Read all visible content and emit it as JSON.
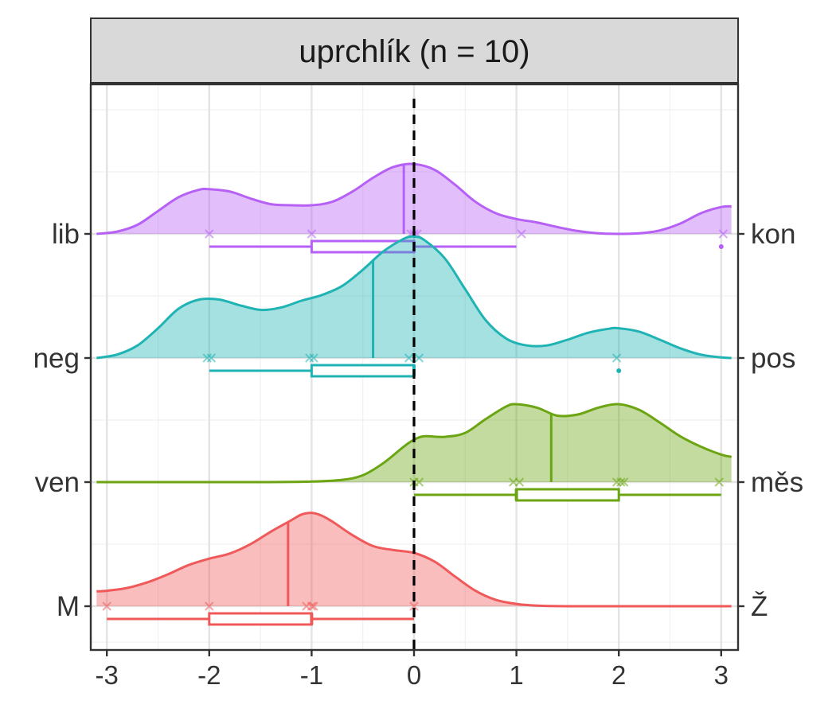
{
  "chart_data": {
    "type": "ridgeline",
    "title": "uprchlík (n = 10)",
    "xlim": [
      -3.1,
      3.1
    ],
    "x_ticks": [
      "-3",
      "-2",
      "-1",
      "0",
      "1",
      "2",
      "3"
    ],
    "x_tick_values": [
      -3,
      -2,
      -1,
      0,
      1,
      2,
      3
    ],
    "reference_line_x": 0,
    "grid": true,
    "legend": "none",
    "series": [
      {
        "left_label": "M",
        "right_label": "Ž",
        "color": "#F0595A",
        "points": [
          -3,
          -2,
          -1.05,
          -1,
          -0.98,
          0
        ],
        "mean": -1.23,
        "box": {
          "whisker_low": -3,
          "q1": -2,
          "median": -1,
          "q3": -1,
          "whisker_high": 0
        },
        "outliers": [],
        "density": [
          [
            -3.1,
            0.26
          ],
          [
            -3.0,
            0.27
          ],
          [
            -2.8,
            0.32
          ],
          [
            -2.6,
            0.42
          ],
          [
            -2.4,
            0.56
          ],
          [
            -2.2,
            0.72
          ],
          [
            -2.0,
            0.83
          ],
          [
            -1.8,
            0.92
          ],
          [
            -1.6,
            1.08
          ],
          [
            -1.4,
            1.3
          ],
          [
            -1.2,
            1.5
          ],
          [
            -1.1,
            1.6
          ],
          [
            -1.0,
            1.63
          ],
          [
            -0.9,
            1.58
          ],
          [
            -0.8,
            1.48
          ],
          [
            -0.6,
            1.24
          ],
          [
            -0.4,
            1.05
          ],
          [
            -0.2,
            0.98
          ],
          [
            0.0,
            0.93
          ],
          [
            0.2,
            0.78
          ],
          [
            0.4,
            0.52
          ],
          [
            0.6,
            0.27
          ],
          [
            0.8,
            0.11
          ],
          [
            1.0,
            0.04
          ],
          [
            1.2,
            0.01
          ],
          [
            1.5,
            0.0
          ],
          [
            2.0,
            0.0
          ],
          [
            3.1,
            0.0
          ]
        ]
      },
      {
        "left_label": "ven",
        "right_label": "měs",
        "color": "#6BA512",
        "points": [
          0,
          0.05,
          0.97,
          1.03,
          1.98,
          2.02,
          2.05,
          2.98
        ],
        "mean": 1.34,
        "box": {
          "whisker_low": 0,
          "q1": 1,
          "median": 1,
          "q3": 2,
          "whisker_high": 3
        },
        "outliers": [],
        "density": [
          [
            -3.1,
            0.0
          ],
          [
            -1.5,
            0.0
          ],
          [
            -1.0,
            0.01
          ],
          [
            -0.7,
            0.04
          ],
          [
            -0.5,
            0.12
          ],
          [
            -0.3,
            0.33
          ],
          [
            -0.1,
            0.62
          ],
          [
            0.0,
            0.74
          ],
          [
            0.1,
            0.8
          ],
          [
            0.3,
            0.79
          ],
          [
            0.5,
            0.86
          ],
          [
            0.7,
            1.1
          ],
          [
            0.9,
            1.32
          ],
          [
            1.0,
            1.36
          ],
          [
            1.2,
            1.3
          ],
          [
            1.4,
            1.16
          ],
          [
            1.6,
            1.18
          ],
          [
            1.8,
            1.3
          ],
          [
            2.0,
            1.36
          ],
          [
            2.2,
            1.26
          ],
          [
            2.4,
            1.04
          ],
          [
            2.6,
            0.8
          ],
          [
            2.8,
            0.62
          ],
          [
            3.0,
            0.48
          ],
          [
            3.1,
            0.44
          ]
        ]
      },
      {
        "left_label": "neg",
        "right_label": "pos",
        "color": "#1FB3B4",
        "points": [
          -2.02,
          -1.98,
          -1.02,
          -0.98,
          -0.05,
          0.05,
          1.98
        ],
        "mean": -0.4,
        "box": {
          "whisker_low": -2,
          "q1": -1,
          "median": 0,
          "q3": 0,
          "whisker_high": 0
        },
        "outliers": [
          2
        ],
        "density": [
          [
            -3.1,
            0.0
          ],
          [
            -2.9,
            0.06
          ],
          [
            -2.7,
            0.22
          ],
          [
            -2.5,
            0.52
          ],
          [
            -2.3,
            0.86
          ],
          [
            -2.1,
            1.02
          ],
          [
            -1.9,
            1.02
          ],
          [
            -1.7,
            0.92
          ],
          [
            -1.5,
            0.84
          ],
          [
            -1.3,
            0.88
          ],
          [
            -1.1,
            1.0
          ],
          [
            -0.9,
            1.1
          ],
          [
            -0.7,
            1.26
          ],
          [
            -0.5,
            1.54
          ],
          [
            -0.3,
            1.86
          ],
          [
            -0.1,
            2.08
          ],
          [
            0.0,
            2.12
          ],
          [
            0.1,
            2.06
          ],
          [
            0.3,
            1.74
          ],
          [
            0.5,
            1.2
          ],
          [
            0.7,
            0.66
          ],
          [
            0.9,
            0.34
          ],
          [
            1.1,
            0.22
          ],
          [
            1.3,
            0.22
          ],
          [
            1.5,
            0.32
          ],
          [
            1.7,
            0.44
          ],
          [
            1.9,
            0.51
          ],
          [
            2.0,
            0.52
          ],
          [
            2.2,
            0.46
          ],
          [
            2.4,
            0.32
          ],
          [
            2.6,
            0.17
          ],
          [
            2.8,
            0.06
          ],
          [
            3.0,
            0.01
          ],
          [
            3.1,
            0.0
          ]
        ]
      },
      {
        "left_label": "lib",
        "right_label": "kon",
        "color": "#B660F5",
        "points": [
          -2,
          -1,
          -0.03,
          0,
          0.03,
          1.05,
          3.02
        ],
        "mean": -0.1,
        "box": {
          "whisker_low": -2,
          "q1": -1,
          "median": 0,
          "q3": 0,
          "whisker_high": 1
        },
        "outliers": [
          3
        ],
        "density": [
          [
            -3.1,
            0.0
          ],
          [
            -2.9,
            0.04
          ],
          [
            -2.7,
            0.16
          ],
          [
            -2.5,
            0.4
          ],
          [
            -2.3,
            0.64
          ],
          [
            -2.1,
            0.77
          ],
          [
            -2.0,
            0.78
          ],
          [
            -1.8,
            0.74
          ],
          [
            -1.6,
            0.62
          ],
          [
            -1.4,
            0.52
          ],
          [
            -1.2,
            0.5
          ],
          [
            -1.0,
            0.5
          ],
          [
            -0.8,
            0.56
          ],
          [
            -0.6,
            0.74
          ],
          [
            -0.4,
            0.98
          ],
          [
            -0.2,
            1.17
          ],
          [
            0.0,
            1.22
          ],
          [
            0.2,
            1.12
          ],
          [
            0.4,
            0.86
          ],
          [
            0.6,
            0.56
          ],
          [
            0.8,
            0.36
          ],
          [
            1.0,
            0.26
          ],
          [
            1.2,
            0.2
          ],
          [
            1.4,
            0.12
          ],
          [
            1.6,
            0.05
          ],
          [
            1.8,
            0.01
          ],
          [
            2.0,
            0.0
          ],
          [
            2.2,
            0.01
          ],
          [
            2.4,
            0.06
          ],
          [
            2.6,
            0.18
          ],
          [
            2.8,
            0.36
          ],
          [
            3.0,
            0.47
          ],
          [
            3.1,
            0.48
          ]
        ]
      }
    ]
  }
}
